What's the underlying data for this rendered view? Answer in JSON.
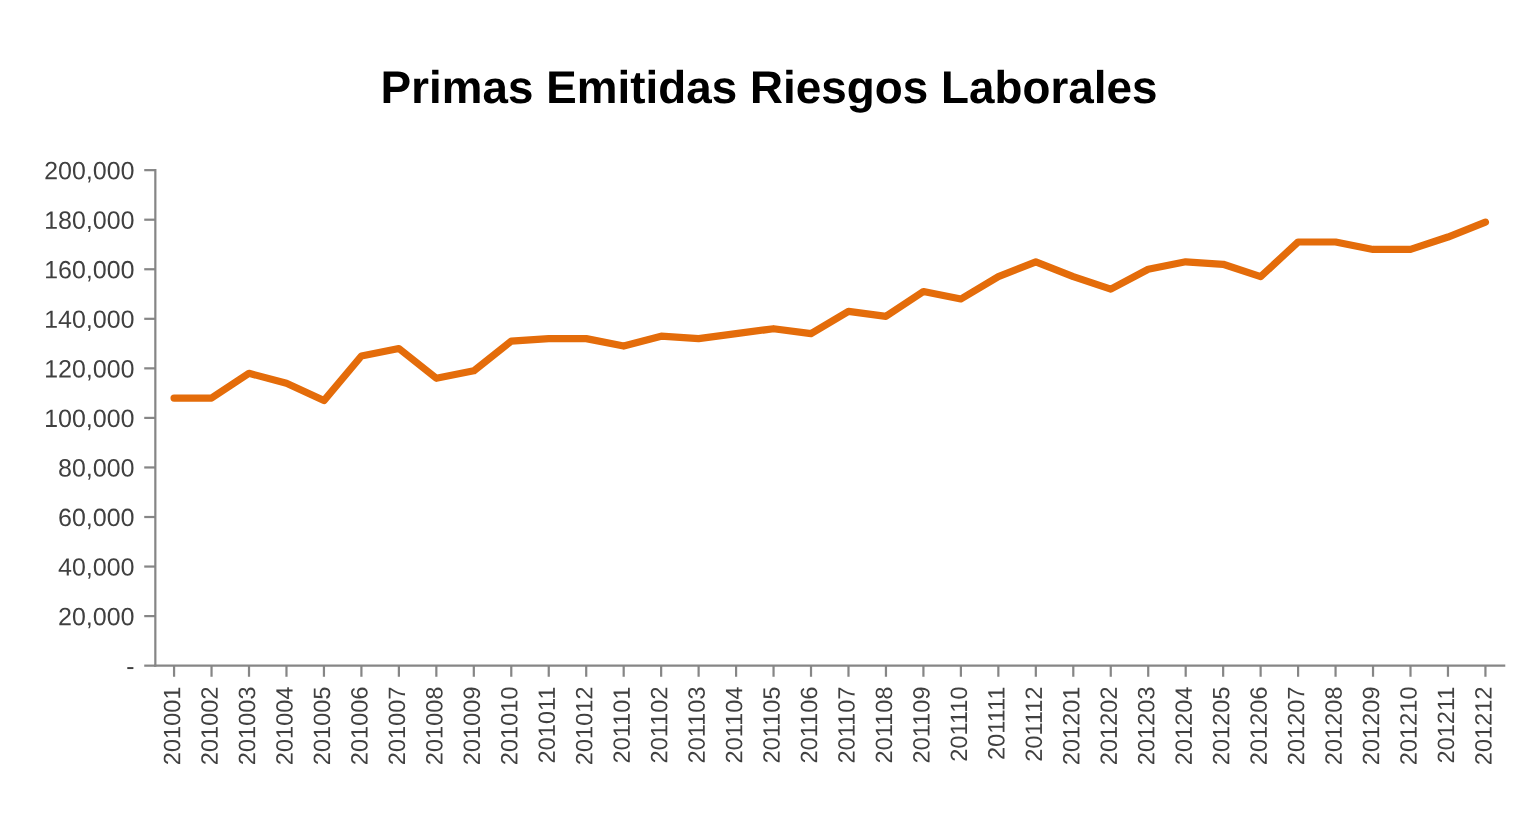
{
  "chart_data": {
    "type": "line",
    "title": "Primas Emitidas Riesgos Laborales",
    "categories": [
      "201001",
      "201002",
      "201003",
      "201004",
      "201005",
      "201006",
      "201007",
      "201008",
      "201009",
      "201010",
      "201011",
      "201012",
      "201101",
      "201102",
      "201103",
      "201104",
      "201105",
      "201106",
      "201107",
      "201108",
      "201109",
      "201110",
      "201111",
      "201112",
      "201201",
      "201202",
      "201203",
      "201204",
      "201205",
      "201206",
      "201207",
      "201208",
      "201209",
      "201210",
      "201211",
      "201212"
    ],
    "series": [
      {
        "color": "#e46c0a",
        "values": [
          108000,
          108000,
          118000,
          114000,
          107000,
          125000,
          128000,
          116000,
          119000,
          131000,
          132000,
          132000,
          129000,
          133000,
          132000,
          134000,
          136000,
          134000,
          143000,
          141000,
          151000,
          148000,
          157000,
          163000,
          157000,
          152000,
          160000,
          163000,
          162000,
          157000,
          171000,
          171000,
          168000,
          168000,
          173000,
          179000
        ]
      }
    ],
    "ylim": [
      0,
      200000
    ],
    "yticks": [
      {
        "value": 0,
        "label": "-"
      },
      {
        "value": 20000,
        "label": "20,000"
      },
      {
        "value": 40000,
        "label": "40,000"
      },
      {
        "value": 60000,
        "label": "60,000"
      },
      {
        "value": 80000,
        "label": "80,000"
      },
      {
        "value": 100000,
        "label": "100,000"
      },
      {
        "value": 120000,
        "label": "120,000"
      },
      {
        "value": 140000,
        "label": "140,000"
      },
      {
        "value": 160000,
        "label": "160,000"
      },
      {
        "value": 180000,
        "label": "180,000"
      },
      {
        "value": 200000,
        "label": "200,000"
      }
    ],
    "grid": false,
    "marker": "none",
    "line_style": "solid"
  }
}
